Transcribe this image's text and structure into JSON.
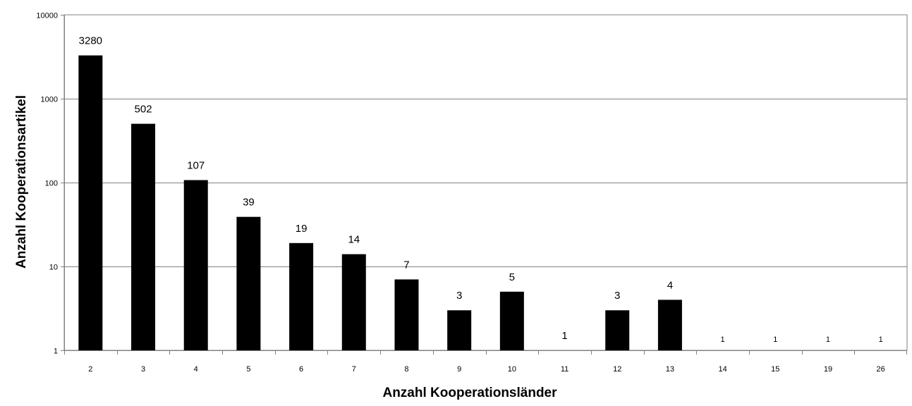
{
  "chart_data": {
    "type": "bar",
    "title": "",
    "xlabel": "Anzahl Kooperationsländer",
    "ylabel": "Anzahl Kooperationsartikel",
    "yscale": "log",
    "ylim": [
      1,
      10000
    ],
    "yticks": [
      "1",
      "10",
      "100",
      "1000",
      "10000"
    ],
    "grid": true,
    "legend": "none",
    "bar_color": "#000000",
    "categories": [
      "2",
      "3",
      "4",
      "5",
      "6",
      "7",
      "8",
      "9",
      "10",
      "11",
      "12",
      "13",
      "14",
      "15",
      "19",
      "26"
    ],
    "values": [
      3280,
      502,
      107,
      39,
      19,
      14,
      7,
      3,
      5,
      1,
      3,
      4,
      1,
      1,
      1,
      1
    ],
    "data_labels": [
      "3280",
      "502",
      "107",
      "39",
      "19",
      "14",
      "7",
      "3",
      "5",
      "1",
      "3",
      "4",
      "1",
      "1",
      "1",
      "1"
    ]
  }
}
